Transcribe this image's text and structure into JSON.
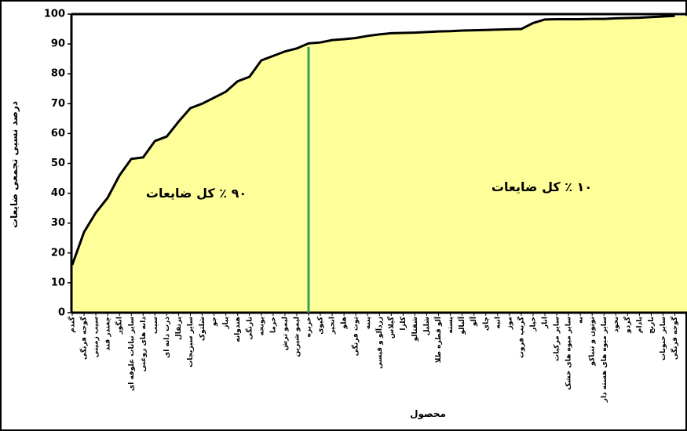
{
  "chart_data": {
    "type": "area",
    "x_label": "محصول",
    "y_label": "درصد نسبی تجمعی ضایعات",
    "categories": [
      "گندم",
      "گوجه فرنگی",
      "سیب زمینی",
      "چغندر قند",
      "انگور",
      "سایر نباتات علوفه ای",
      "دانه های روغنی",
      "سیب",
      "ذرت دانه ای",
      "پرتقال",
      "سایر سبزیجات",
      "شلتوک",
      "جو",
      "پیاز",
      "هندوانه",
      "نارنگی",
      "یونجه",
      "خرما",
      "لیمو ترش",
      "لیمو شیرین",
      "خربزه",
      "کیوی",
      "انجیر",
      "هلو",
      "توت فرنگی",
      "پنبه",
      "زردآلو و قیسی",
      "گیلاس",
      "کلزا",
      "شفتالو",
      "شلیل",
      "آلو قطره طلا",
      "پسته",
      "آلبالو",
      "آلو",
      "چای",
      "انبه",
      "موز",
      "گریپ فروت",
      "خیار",
      "انار",
      "سایر مرکبات",
      "سایر میوه های خشک",
      "به",
      "توتون و تنباکو",
      "سایر میوه های هسته دار",
      "نخود",
      "گردو",
      "بادام",
      "نارنج",
      "سایر حبوبات",
      "گوجه فرنگی"
    ],
    "values": [
      16,
      27,
      33.5,
      38.5,
      46,
      51.5,
      52,
      57.5,
      59,
      64,
      68.5,
      70,
      72,
      74,
      77.5,
      79,
      84.5,
      86,
      87.5,
      88.5,
      90.2,
      90.5,
      91.3,
      91.6,
      92,
      92.7,
      93.2,
      93.6,
      93.7,
      93.8,
      94,
      94.2,
      94.3,
      94.5,
      94.6,
      94.7,
      94.8,
      94.9,
      95,
      97,
      98.2,
      98.3,
      98.3,
      98.3,
      98.4,
      98.4,
      98.6,
      98.7,
      98.8,
      99,
      99.2,
      99.4
    ],
    "color": "#ffff99",
    "ylim": [
      0,
      100
    ],
    "yticks": [
      0,
      10,
      20,
      30,
      40,
      50,
      60,
      70,
      80,
      90,
      100
    ],
    "divider": {
      "category_index": 20,
      "value": 89,
      "color": "#3a9b5c"
    },
    "annotations": [
      "۹۰ ٪ کل ضایعات",
      "۱۰ ٪ کل ضایعات"
    ]
  }
}
